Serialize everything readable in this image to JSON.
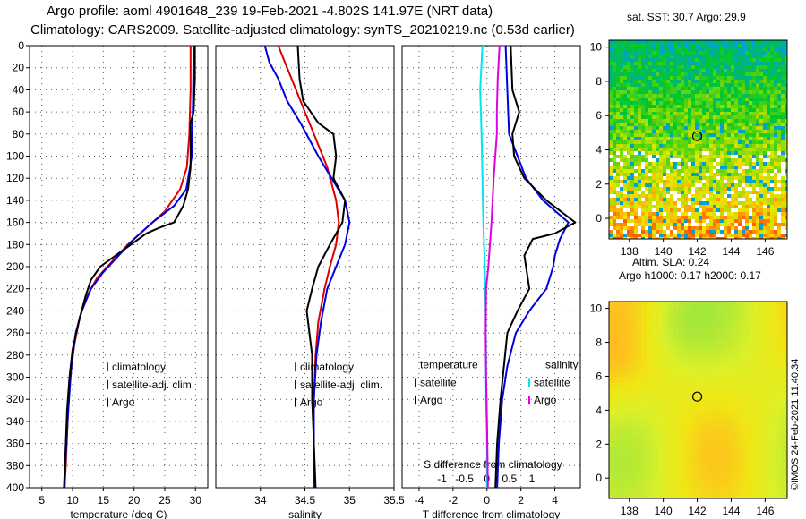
{
  "header": {
    "line1": "Argo profile: aoml 4901648_239 19-Feb-2021 -4.802S 141.97E (NRT data)",
    "line2": "Climatology: CARS2009. Satellite-adjusted climatology: synTS_20210219.nc (0.53d earlier)"
  },
  "maps": {
    "sst_title": "sat. SST: 30.7 Argo: 29.9",
    "sla_title": "Altim. SLA: 0.24",
    "sla_subtitle": "Argo h1000: 0.17 h2000: 0.17",
    "x_ticks": [
      "138",
      "140",
      "142",
      "144",
      "146"
    ],
    "y_ticks": [
      "0",
      "2",
      "4",
      "6",
      "8",
      "10"
    ],
    "marker_lon": 142,
    "marker_lat": 4.8
  },
  "credit": "©IMOS 24-Feb-2021 11:40:34",
  "colors": {
    "climatology": "#dd0000",
    "satellite": "#0000dd",
    "argo": "#000000",
    "sat_diff": "#00e5ee",
    "sal_diff": "#e000e0"
  },
  "chart_data": [
    {
      "type": "line",
      "title": "",
      "xlabel": "temperature (deg C)",
      "ylabel": "",
      "xlim": [
        3,
        32
      ],
      "ylim": [
        400,
        0
      ],
      "x_ticks": [
        "5",
        "10",
        "15",
        "20",
        "25",
        "30"
      ],
      "y_ticks": [
        "0",
        "20",
        "40",
        "60",
        "80",
        "100",
        "120",
        "140",
        "160",
        "180",
        "200",
        "220",
        "240",
        "260",
        "280",
        "300",
        "320",
        "340",
        "360",
        "380",
        "400"
      ],
      "legend": [
        "climatology",
        "satellite-adj. clim.",
        "Argo"
      ],
      "series": [
        {
          "name": "climatology",
          "color": "#dd0000",
          "points": [
            [
              29.2,
              0
            ],
            [
              29.2,
              40
            ],
            [
              29.0,
              80
            ],
            [
              28.6,
              110
            ],
            [
              27.5,
              130
            ],
            [
              25,
              150
            ],
            [
              22,
              165
            ],
            [
              19,
              180
            ],
            [
              16.5,
              195
            ],
            [
              14,
              210
            ],
            [
              12.5,
              225
            ],
            [
              11.2,
              245
            ],
            [
              10.3,
              270
            ],
            [
              9.6,
              300
            ],
            [
              9.2,
              340
            ],
            [
              8.9,
              380
            ],
            [
              8.7,
              400
            ]
          ]
        },
        {
          "name": "satellite-adj. clim.",
          "color": "#0000dd",
          "points": [
            [
              29.7,
              0
            ],
            [
              29.6,
              50
            ],
            [
              29.4,
              100
            ],
            [
              28.5,
              130
            ],
            [
              26.5,
              145
            ],
            [
              23,
              160
            ],
            [
              20,
              175
            ],
            [
              17.5,
              190
            ],
            [
              15,
              205
            ],
            [
              13,
              220
            ],
            [
              11.5,
              240
            ],
            [
              10.5,
              260
            ],
            [
              9.8,
              290
            ],
            [
              9.3,
              330
            ],
            [
              8.9,
              370
            ],
            [
              8.7,
              400
            ]
          ]
        },
        {
          "name": "Argo",
          "color": "#000000",
          "points": [
            [
              29.9,
              0
            ],
            [
              29.9,
              30
            ],
            [
              29.7,
              60
            ],
            [
              29.2,
              70
            ],
            [
              29.2,
              110
            ],
            [
              28.8,
              130
            ],
            [
              28.0,
              145
            ],
            [
              26.5,
              160
            ],
            [
              24,
              165
            ],
            [
              22,
              170
            ],
            [
              19.5,
              180
            ],
            [
              17,
              190
            ],
            [
              14.5,
              200
            ],
            [
              13,
              212
            ],
            [
              12.2,
              225
            ],
            [
              11,
              250
            ],
            [
              10,
              275
            ],
            [
              9.5,
              300
            ],
            [
              9.1,
              330
            ],
            [
              8.9,
              360
            ],
            [
              8.6,
              400
            ]
          ]
        }
      ]
    },
    {
      "type": "line",
      "title": "",
      "xlabel": "salinity",
      "ylabel": "",
      "xlim": [
        33.5,
        35.5
      ],
      "ylim": [
        400,
        0
      ],
      "x_ticks": [
        "34",
        "34.5",
        "35",
        "35.5"
      ],
      "legend": [
        "climatology",
        "satellite-adj. clim.",
        "Argo"
      ],
      "series": [
        {
          "name": "climatology",
          "color": "#dd0000",
          "points": [
            [
              34.2,
              0
            ],
            [
              34.3,
              20
            ],
            [
              34.45,
              50
            ],
            [
              34.6,
              80
            ],
            [
              34.75,
              110
            ],
            [
              34.85,
              140
            ],
            [
              34.88,
              160
            ],
            [
              34.85,
              180
            ],
            [
              34.78,
              200
            ],
            [
              34.72,
              220
            ],
            [
              34.65,
              250
            ],
            [
              34.62,
              280
            ],
            [
              34.6,
              320
            ],
            [
              34.6,
              400
            ]
          ]
        },
        {
          "name": "satellite-adj. clim.",
          "color": "#0000dd",
          "points": [
            [
              34.05,
              0
            ],
            [
              34.1,
              15
            ],
            [
              34.2,
              30
            ],
            [
              34.3,
              50
            ],
            [
              34.45,
              70
            ],
            [
              34.65,
              100
            ],
            [
              34.8,
              120
            ],
            [
              34.95,
              140
            ],
            [
              35.0,
              160
            ],
            [
              34.95,
              180
            ],
            [
              34.85,
              200
            ],
            [
              34.75,
              220
            ],
            [
              34.68,
              250
            ],
            [
              34.63,
              280
            ],
            [
              34.6,
              320
            ],
            [
              34.6,
              400
            ]
          ]
        },
        {
          "name": "Argo",
          "color": "#000000",
          "points": [
            [
              34.42,
              0
            ],
            [
              34.44,
              30
            ],
            [
              34.48,
              50
            ],
            [
              34.65,
              70
            ],
            [
              34.82,
              80
            ],
            [
              34.85,
              100
            ],
            [
              34.82,
              120
            ],
            [
              34.95,
              140
            ],
            [
              34.92,
              160
            ],
            [
              34.78,
              180
            ],
            [
              34.65,
              200
            ],
            [
              34.58,
              220
            ],
            [
              34.52,
              240
            ],
            [
              34.55,
              260
            ],
            [
              34.58,
              280
            ],
            [
              34.58,
              320
            ],
            [
              34.6,
              360
            ],
            [
              34.62,
              400
            ]
          ]
        }
      ]
    },
    {
      "type": "line",
      "title": "",
      "xlabel": "T difference from climatology",
      "ylabel": "",
      "xlim": [
        -5,
        5.5
      ],
      "ylim": [
        400,
        0
      ],
      "x_ticks": [
        "-4",
        "-2",
        "0",
        "2",
        "4"
      ],
      "top_axis_label": "S difference from climatology",
      "top_ticks": [
        "-1",
        "-0.5",
        "0",
        "0.5",
        "1"
      ],
      "legend": [
        "temperature satellite",
        "temperature Argo",
        "salinity satellite",
        "salinity Argo"
      ],
      "series": [
        {
          "name": "temperature satellite",
          "color": "#0000dd",
          "points": [
            [
              1.1,
              0
            ],
            [
              1.2,
              40
            ],
            [
              1.3,
              80
            ],
            [
              1.8,
              100
            ],
            [
              2.3,
              120
            ],
            [
              3.3,
              140
            ],
            [
              4.8,
              160
            ],
            [
              4.3,
              175
            ],
            [
              4.0,
              190
            ],
            [
              3.9,
              200
            ],
            [
              3.5,
              220
            ],
            [
              2.5,
              240
            ],
            [
              1.7,
              260
            ],
            [
              1.2,
              290
            ],
            [
              0.9,
              320
            ],
            [
              0.7,
              360
            ],
            [
              0.6,
              400
            ]
          ]
        },
        {
          "name": "temperature Argo",
          "color": "#000000",
          "points": [
            [
              1.4,
              0
            ],
            [
              1.5,
              40
            ],
            [
              1.9,
              60
            ],
            [
              1.5,
              80
            ],
            [
              1.6,
              100
            ],
            [
              2.2,
              120
            ],
            [
              3.5,
              140
            ],
            [
              5.2,
              160
            ],
            [
              4.0,
              170
            ],
            [
              2.7,
              175
            ],
            [
              2.2,
              190
            ],
            [
              2.5,
              220
            ],
            [
              1.8,
              240
            ],
            [
              1.2,
              260
            ],
            [
              1.0,
              290
            ],
            [
              0.8,
              320
            ],
            [
              0.6,
              360
            ],
            [
              0.5,
              400
            ]
          ]
        },
        {
          "name": "salinity satellite",
          "color": "#00e5ee",
          "points": [
            [
              -0.1,
              0
            ],
            [
              -0.15,
              40
            ],
            [
              -0.12,
              80
            ],
            [
              -0.1,
              120
            ],
            [
              -0.08,
              160
            ],
            [
              -0.05,
              200
            ],
            [
              -0.03,
              240
            ],
            [
              -0.02,
              280
            ],
            [
              -0.02,
              320
            ],
            [
              0,
              360
            ],
            [
              0,
              400
            ]
          ]
        },
        {
          "name": "salinity Argo",
          "color": "#e000e0",
          "points": [
            [
              0.28,
              0
            ],
            [
              0.24,
              30
            ],
            [
              0.22,
              60
            ],
            [
              0.22,
              80
            ],
            [
              0.15,
              120
            ],
            [
              0.1,
              160
            ],
            [
              0.03,
              200
            ],
            [
              -0.02,
              220
            ],
            [
              -0.03,
              260
            ],
            [
              -0.02,
              300
            ],
            [
              0,
              340
            ],
            [
              0.02,
              400
            ]
          ]
        }
      ]
    }
  ]
}
